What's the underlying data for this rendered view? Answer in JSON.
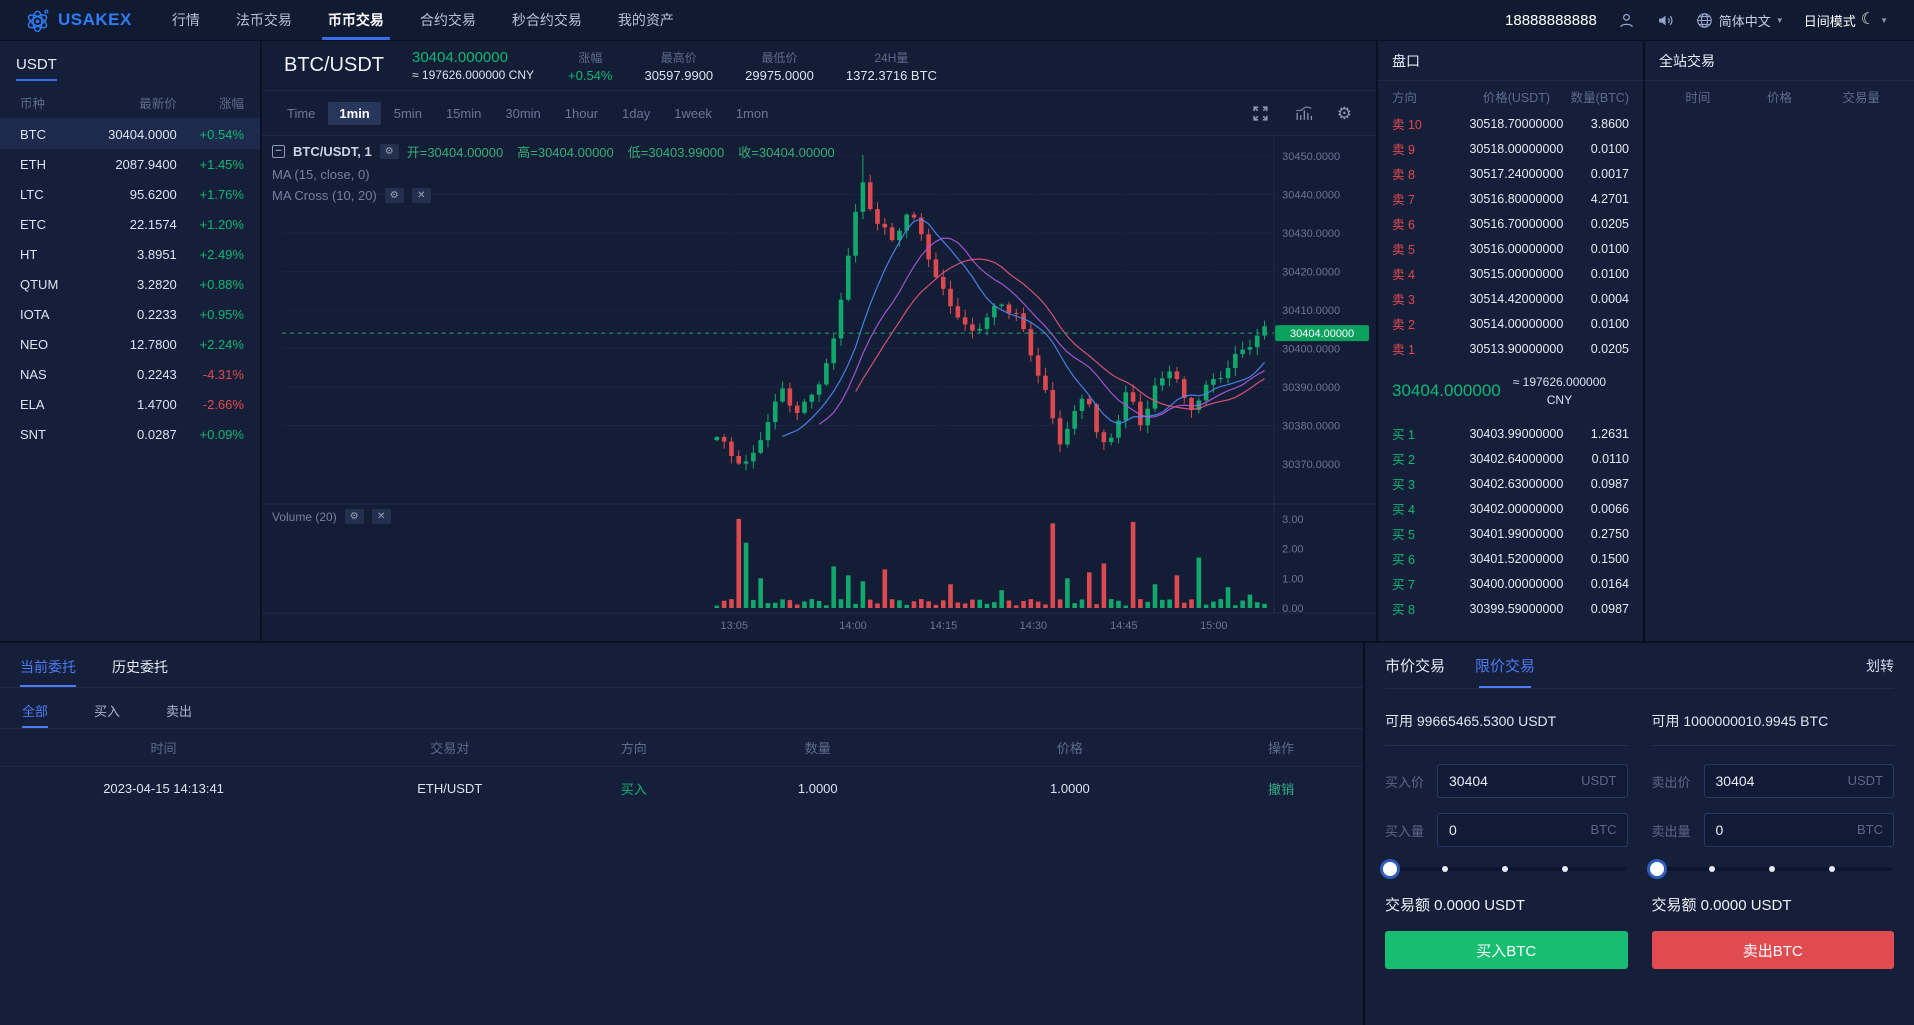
{
  "navbar": {
    "brand": "USAKEX",
    "items": [
      {
        "label": "行情",
        "active": false
      },
      {
        "label": "法币交易",
        "active": false
      },
      {
        "label": "币币交易",
        "active": true
      },
      {
        "label": "合约交易",
        "active": false
      },
      {
        "label": "秒合约交易",
        "active": false
      },
      {
        "label": "我的资产",
        "active": false
      }
    ],
    "phone": "18888888888",
    "language": "简体中文",
    "theme_label": "日间模式"
  },
  "sidebar": {
    "tab": "USDT",
    "headers": [
      "币种",
      "最新价",
      "涨幅"
    ],
    "active_coin": "BTC",
    "coins": [
      [
        "BTC",
        "30404.0000",
        "+0.54%"
      ],
      [
        "ETH",
        "2087.9400",
        "+1.45%"
      ],
      [
        "LTC",
        "95.6200",
        "+1.76%"
      ],
      [
        "ETC",
        "22.1574",
        "+1.20%"
      ],
      [
        "HT",
        "3.8951",
        "+2.49%"
      ],
      [
        "QTUM",
        "3.2820",
        "+0.88%"
      ],
      [
        "IOTA",
        "0.2233",
        "+0.95%"
      ],
      [
        "NEO",
        "12.7800",
        "+2.24%"
      ],
      [
        "NAS",
        "0.2243",
        "-4.31%"
      ],
      [
        "ELA",
        "1.4700",
        "-2.66%"
      ],
      [
        "SNT",
        "0.0287",
        "+0.09%"
      ]
    ]
  },
  "market_header": {
    "pair": "BTC/USDT",
    "price": "30404.000000",
    "cny": "≈ 197626.000000 CNY",
    "stats": [
      {
        "label": "涨幅",
        "value": "+0.54%",
        "up": true
      },
      {
        "label": "最高价",
        "value": "30597.9900",
        "up": false
      },
      {
        "label": "最低价",
        "value": "29975.0000",
        "up": false
      },
      {
        "label": "24H量",
        "value": "1372.3716 BTC",
        "up": false
      }
    ]
  },
  "chart": {
    "intervals": [
      "Time",
      "1min",
      "5min",
      "15min",
      "30min",
      "1hour",
      "1day",
      "1week",
      "1mon"
    ],
    "active_interval": "1min",
    "legend_pair": "BTC/USDT, 1",
    "ohlc": {
      "o": "开=30404.00000",
      "h": "高=30404.00000",
      "l": "低=30403.99000",
      "c": "收=30404.00000"
    },
    "ma1": "MA (15, close, 0)",
    "ma2": "MA Cross (10, 20)",
    "volume_label": "Volume (20)",
    "price_badge": "30404.00000",
    "y_labels": [
      "30450.0000",
      "30440.0000",
      "30430.0000",
      "30420.0000",
      "30410.0000",
      "30400.0000",
      "30390.0000",
      "30380.0000",
      "30370.0000"
    ],
    "vol_labels": [
      "3.00",
      "2.00",
      "1.00",
      "0.00"
    ],
    "x_ticks": [
      [
        "13:05",
        0.038
      ],
      [
        "14:00",
        0.252
      ],
      [
        "14:15",
        0.415
      ],
      [
        "14:30",
        0.577
      ],
      [
        "14:45",
        0.74
      ],
      [
        "15:00",
        0.902
      ]
    ],
    "price_anchors": [
      [
        0.0,
        30377
      ],
      [
        0.03,
        30371
      ],
      [
        0.06,
        30369
      ],
      [
        0.09,
        30381
      ],
      [
        0.12,
        30390
      ],
      [
        0.15,
        30383
      ],
      [
        0.18,
        30389
      ],
      [
        0.21,
        30398
      ],
      [
        0.24,
        30425
      ],
      [
        0.265,
        30444
      ],
      [
        0.29,
        30434
      ],
      [
        0.32,
        30428
      ],
      [
        0.345,
        30434
      ],
      [
        0.37,
        30431
      ],
      [
        0.4,
        30418
      ],
      [
        0.43,
        30412
      ],
      [
        0.46,
        30404
      ],
      [
        0.49,
        30407
      ],
      [
        0.52,
        30411
      ],
      [
        0.55,
        30408
      ],
      [
        0.575,
        30399
      ],
      [
        0.6,
        30389
      ],
      [
        0.625,
        30376
      ],
      [
        0.65,
        30381
      ],
      [
        0.675,
        30389
      ],
      [
        0.7,
        30373
      ],
      [
        0.725,
        30379
      ],
      [
        0.75,
        30390
      ],
      [
        0.775,
        30381
      ],
      [
        0.8,
        30389
      ],
      [
        0.83,
        30395
      ],
      [
        0.86,
        30383
      ],
      [
        0.89,
        30390
      ],
      [
        0.92,
        30394
      ],
      [
        0.95,
        30398
      ],
      [
        1.0,
        30404
      ]
    ],
    "vol_spikes": [
      [
        0.035,
        3.0
      ],
      [
        0.055,
        2.2
      ],
      [
        0.075,
        1.0
      ],
      [
        0.21,
        1.4
      ],
      [
        0.24,
        1.1
      ],
      [
        0.265,
        0.9
      ],
      [
        0.3,
        1.3
      ],
      [
        0.43,
        0.8
      ],
      [
        0.52,
        0.6
      ],
      [
        0.61,
        2.85
      ],
      [
        0.635,
        1.0
      ],
      [
        0.675,
        1.2
      ],
      [
        0.71,
        1.5
      ],
      [
        0.755,
        2.9
      ],
      [
        0.8,
        0.8
      ],
      [
        0.845,
        1.1
      ],
      [
        0.885,
        1.7
      ],
      [
        0.93,
        0.7
      ],
      [
        0.97,
        0.45
      ]
    ]
  },
  "orderbook": {
    "title": "盘口",
    "headers": [
      "方向",
      "价格(USDT)",
      "数量(BTC)"
    ],
    "asks": [
      [
        "卖 10",
        "30518.70000000",
        "3.8600"
      ],
      [
        "卖 9",
        "30518.00000000",
        "0.0100"
      ],
      [
        "卖 8",
        "30517.24000000",
        "0.0017"
      ],
      [
        "卖 7",
        "30516.80000000",
        "4.2701"
      ],
      [
        "卖 6",
        "30516.70000000",
        "0.0205"
      ],
      [
        "卖 5",
        "30516.00000000",
        "0.0100"
      ],
      [
        "卖 4",
        "30515.00000000",
        "0.0100"
      ],
      [
        "卖 3",
        "30514.42000000",
        "0.0004"
      ],
      [
        "卖 2",
        "30514.00000000",
        "0.0100"
      ],
      [
        "卖 1",
        "30513.90000000",
        "0.0205"
      ]
    ],
    "mid_price": "30404.000000",
    "mid_cny_line1": "≈ 197626.000000",
    "mid_cny_line2": "CNY",
    "bids": [
      [
        "买 1",
        "30403.99000000",
        "1.2631"
      ],
      [
        "买 2",
        "30402.64000000",
        "0.0110"
      ],
      [
        "买 3",
        "30402.63000000",
        "0.0987"
      ],
      [
        "买 4",
        "30402.00000000",
        "0.0066"
      ],
      [
        "买 5",
        "30401.99000000",
        "0.2750"
      ],
      [
        "买 6",
        "30401.52000000",
        "0.1500"
      ],
      [
        "买 7",
        "30400.00000000",
        "0.0164"
      ],
      [
        "买 8",
        "30399.59000000",
        "0.0987"
      ]
    ]
  },
  "trades_panel": {
    "title": "全站交易",
    "headers": [
      "时间",
      "价格",
      "交易量"
    ]
  },
  "orders": {
    "tabs": [
      "当前委托",
      "历史委托"
    ],
    "active_tab": "当前委托",
    "filters": [
      "全部",
      "买入",
      "卖出"
    ],
    "active_filter": "全部",
    "headers": [
      "时间",
      "交易对",
      "方向",
      "数量",
      "价格",
      "操作"
    ],
    "rows": [
      [
        "2023-04-15 14:13:41",
        "ETH/USDT",
        "买入",
        "1.0000",
        "1.0000",
        "撤销"
      ]
    ]
  },
  "trade_form": {
    "tabs": [
      "市价交易",
      "限价交易"
    ],
    "active_tab": "限价交易",
    "transfer": "划转",
    "buy": {
      "available": "可用 99665465.5300 USDT",
      "price_label": "买入价",
      "price": "30404",
      "price_unit": "USDT",
      "amount_label": "买入量",
      "amount": "0",
      "amount_unit": "BTC",
      "total": "交易额 0.0000 USDT",
      "button": "买入BTC"
    },
    "sell": {
      "available": "可用 1000000010.9945 BTC",
      "price_label": "卖出价",
      "price": "30404",
      "price_unit": "USDT",
      "amount_label": "卖出量",
      "amount": "0",
      "amount_unit": "BTC",
      "total": "交易额 0.0000 USDT",
      "button": "卖出BTC"
    }
  }
}
